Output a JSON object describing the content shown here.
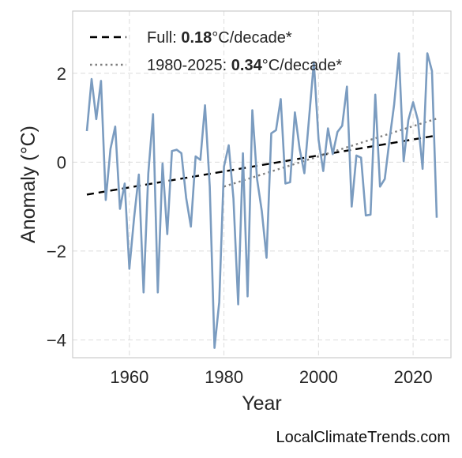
{
  "chart_data": {
    "type": "line",
    "xlabel": "Year",
    "ylabel": "Anomaly (°C)",
    "xlim": [
      1948,
      2028
    ],
    "ylim": [
      -4.4,
      3.4
    ],
    "xticks": [
      1960,
      1980,
      2000,
      2020
    ],
    "yticks": [
      -4,
      -2,
      0,
      2
    ],
    "ytick_labels": [
      "−4",
      "−2",
      "0",
      "2"
    ],
    "grid": true,
    "legend_position": "top-left",
    "series": [
      {
        "style": "solid",
        "color": "#7b9cc0",
        "x": [
          1951,
          1952,
          1953,
          1954,
          1955,
          1956,
          1957,
          1958,
          1959,
          1960,
          1961,
          1962,
          1963,
          1964,
          1965,
          1966,
          1967,
          1968,
          1969,
          1970,
          1971,
          1972,
          1973,
          1974,
          1975,
          1976,
          1977,
          1978,
          1979,
          1980,
          1981,
          1982,
          1983,
          1984,
          1985,
          1986,
          1987,
          1988,
          1989,
          1990,
          1991,
          1992,
          1993,
          1994,
          1995,
          1996,
          1997,
          1998,
          1999,
          2000,
          2001,
          2002,
          2003,
          2004,
          2005,
          2006,
          2007,
          2008,
          2009,
          2010,
          2011,
          2012,
          2013,
          2014,
          2015,
          2016,
          2017,
          2018,
          2019,
          2020,
          2021,
          2022,
          2023,
          2024,
          2025
        ],
        "y": [
          0.7,
          1.87,
          0.97,
          1.83,
          -0.85,
          0.3,
          0.8,
          -1.05,
          -0.48,
          -2.4,
          -1.25,
          -0.28,
          -2.93,
          -0.25,
          1.08,
          -2.93,
          -0.03,
          -1.62,
          0.25,
          0.28,
          0.2,
          -0.8,
          -1.45,
          0.13,
          0.05,
          1.28,
          -0.55,
          -4.18,
          -3.15,
          -0.1,
          0.38,
          -0.82,
          -3.2,
          0.2,
          -3.02,
          1.17,
          -0.38,
          -1.1,
          -2.15,
          0.65,
          0.72,
          1.42,
          -0.48,
          -0.45,
          1.12,
          0.3,
          -0.25,
          1.0,
          2.25,
          0.5,
          -0.2,
          0.76,
          0.18,
          0.68,
          0.82,
          1.7,
          -1.0,
          0.15,
          0.1,
          -1.2,
          -1.18,
          1.52,
          -0.55,
          -0.38,
          0.5,
          1.3,
          2.45,
          0.02,
          0.95,
          1.35,
          0.95,
          -0.15,
          2.45,
          2.05,
          -1.25
        ]
      },
      {
        "style": "dashed",
        "color": "#000000",
        "x": [
          1951,
          2025
        ],
        "y": [
          -0.73,
          0.6
        ]
      },
      {
        "style": "dotted",
        "color": "#7f7f7f",
        "x": [
          1980,
          2025
        ],
        "y": [
          -0.55,
          0.98
        ]
      }
    ],
    "legend": [
      {
        "style": "dashed",
        "color": "#000000",
        "prefix": "Full: ",
        "bold": "0.18",
        "suffix": "°C/decade*"
      },
      {
        "style": "dotted",
        "color": "#7f7f7f",
        "prefix": "1980-2025: ",
        "bold": "0.34",
        "suffix": "°C/decade*"
      }
    ]
  },
  "credit": "LocalClimateTrends.com"
}
